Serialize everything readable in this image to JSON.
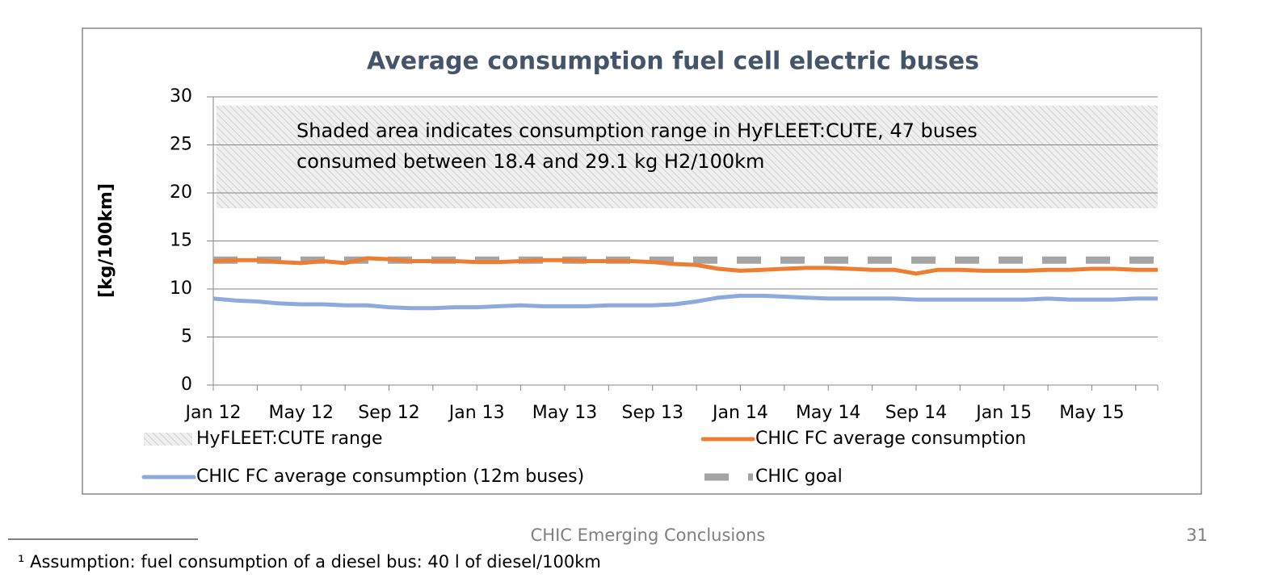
{
  "chart_data": {
    "type": "line",
    "title": "Average consumption fuel cell electric buses",
    "ylabel": "[kg/100km]",
    "annotation": [
      "Shaded area indicates consumption range in HyFLEET:CUTE, 47 buses",
      "consumed between 18.4 and 29.1 kg H2/100km"
    ],
    "categories": [
      "Jan 12",
      null,
      null,
      null,
      "May 12",
      null,
      null,
      null,
      "Sep 12",
      null,
      null,
      null,
      "Jan 13",
      null,
      null,
      null,
      "May 13",
      null,
      null,
      null,
      "Sep 13",
      null,
      null,
      null,
      "Jan 14",
      null,
      null,
      null,
      "May 14",
      null,
      null,
      null,
      "Sep 14",
      null,
      null,
      null,
      "Jan 15",
      null,
      null,
      null,
      "May 15",
      null,
      null,
      null
    ],
    "ylim": [
      0,
      30
    ],
    "yticks": [
      0,
      5,
      10,
      15,
      20,
      25,
      30
    ],
    "grid": true,
    "series": [
      {
        "name": "HyFLEET:CUTE range",
        "color": "#d9d9d9",
        "low": 18.4,
        "high": 29.1
      },
      {
        "name": "CHIC FC average consumption",
        "color": "#ed7d31",
        "values": [
          12.9,
          13.0,
          13.0,
          12.8,
          12.7,
          12.9,
          12.7,
          13.2,
          13.1,
          12.9,
          12.9,
          12.9,
          12.8,
          12.8,
          12.9,
          13.0,
          13.0,
          12.9,
          12.9,
          12.9,
          12.8,
          12.6,
          12.5,
          12.1,
          11.9,
          12.0,
          12.1,
          12.2,
          12.2,
          12.1,
          12.0,
          12.0,
          11.6,
          12.0,
          12.0,
          11.9,
          11.9,
          11.9,
          12.0,
          12.0,
          12.1,
          12.1,
          12.0,
          12.0
        ]
      },
      {
        "name": "CHIC FC average consumption (12m buses)",
        "color": "#8ea9db",
        "values": [
          9.0,
          8.8,
          8.7,
          8.5,
          8.4,
          8.4,
          8.3,
          8.3,
          8.1,
          8.0,
          8.0,
          8.1,
          8.1,
          8.2,
          8.3,
          8.2,
          8.2,
          8.2,
          8.3,
          8.3,
          8.3,
          8.4,
          8.7,
          9.1,
          9.3,
          9.3,
          9.2,
          9.1,
          9.0,
          9.0,
          9.0,
          9.0,
          8.9,
          8.9,
          8.9,
          8.9,
          8.9,
          8.9,
          9.0,
          8.9,
          8.9,
          8.9,
          9.0,
          9.0
        ]
      },
      {
        "name": "CHIC goal",
        "color": "#a5a5a5",
        "values": [
          13,
          13,
          13,
          13,
          13,
          13,
          13,
          13,
          13,
          13,
          13,
          13,
          13,
          13,
          13,
          13,
          13,
          13,
          13,
          13,
          13,
          13,
          13,
          13,
          13,
          13,
          13,
          13,
          13,
          13,
          13,
          13,
          13,
          13,
          13,
          13,
          13,
          13,
          13,
          13,
          13,
          13,
          13,
          13
        ]
      }
    ]
  },
  "footer": {
    "center": "CHIC Emerging Conclusions",
    "page": "31",
    "footnote": "¹ Assumption: fuel consumption of a diesel bus: 40 l of diesel/100km"
  }
}
